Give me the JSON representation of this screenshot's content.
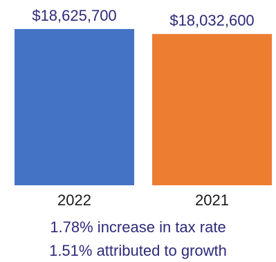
{
  "chart_data": {
    "type": "bar",
    "categories": [
      "2022",
      "2021"
    ],
    "values": [
      18625700,
      18032600
    ],
    "value_labels": [
      "$18,625,700",
      "$18,032,600"
    ],
    "colors": [
      "#4472c4",
      "#ed7d31"
    ],
    "ylim": [
      0,
      18625700
    ],
    "grid": false,
    "legend": "none"
  },
  "notes": [
    "1.78% increase in tax rate",
    "1.51% attributed to growth"
  ]
}
